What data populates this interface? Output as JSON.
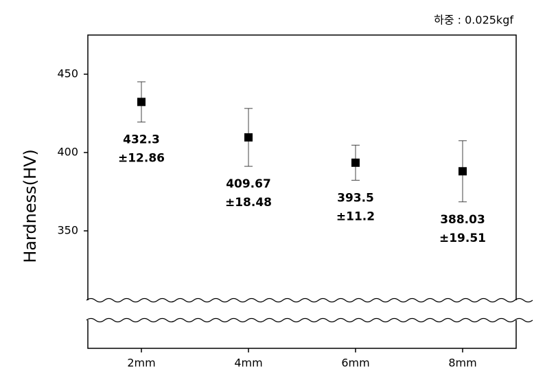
{
  "chart_data": {
    "type": "scatter",
    "annotation": "하중 : 0.025kgf",
    "y_label": "Hardness(HV)",
    "categories": [
      "2mm",
      "4mm",
      "6mm",
      "8mm"
    ],
    "series": [
      {
        "color": "#000000",
        "values": [
          432.3,
          409.67,
          393.5,
          388.03
        ],
        "errors": [
          12.86,
          18.48,
          11.2,
          19.51
        ],
        "error_labels": [
          "±12.86",
          "±18.48",
          "±11.2",
          "±19.51"
        ]
      }
    ],
    "ylim": [
      275,
      475
    ],
    "yticks": [
      350,
      400,
      450
    ],
    "axis_break": true
  }
}
